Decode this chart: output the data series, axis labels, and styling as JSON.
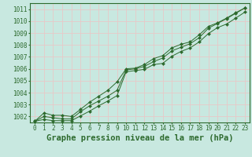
{
  "title": "Graphe pression niveau de la mer (hPa)",
  "x_values": [
    0,
    1,
    2,
    3,
    4,
    5,
    6,
    7,
    8,
    9,
    10,
    11,
    12,
    13,
    14,
    15,
    16,
    17,
    18,
    19,
    20,
    21,
    22,
    23
  ],
  "line1": [
    1001.6,
    1002.0,
    1001.9,
    1001.8,
    1001.8,
    1002.4,
    1002.9,
    1003.3,
    1003.7,
    1004.2,
    1005.9,
    1006.0,
    1006.2,
    1006.6,
    1006.9,
    1007.5,
    1007.8,
    1008.1,
    1008.6,
    1009.4,
    1009.8,
    1010.2,
    1010.65,
    1011.1
  ],
  "line2": [
    1001.6,
    1002.3,
    1002.1,
    1002.1,
    1002.0,
    1002.6,
    1003.2,
    1003.7,
    1004.2,
    1004.9,
    1006.0,
    1006.05,
    1006.35,
    1006.85,
    1007.1,
    1007.75,
    1008.05,
    1008.25,
    1008.85,
    1009.55,
    1009.85,
    1010.25,
    1010.7,
    1011.1
  ],
  "line3": [
    1001.6,
    1001.75,
    1001.65,
    1001.65,
    1001.65,
    1002.05,
    1002.45,
    1002.9,
    1003.3,
    1003.75,
    1005.75,
    1005.85,
    1005.95,
    1006.35,
    1006.45,
    1007.05,
    1007.45,
    1007.75,
    1008.25,
    1008.95,
    1009.45,
    1009.75,
    1010.25,
    1010.75
  ],
  "line_color": "#2d6a2d",
  "bg_color": "#c8e8e0",
  "grid_color": "#e8c8c8",
  "axis_color": "#2d6a2d",
  "text_color": "#2d6a2d",
  "ylim_min": 1001.5,
  "ylim_max": 1011.5,
  "yticks": [
    1002,
    1003,
    1004,
    1005,
    1006,
    1007,
    1008,
    1009,
    1010,
    1011
  ],
  "marker": "D",
  "marker_size": 2.0,
  "title_fontsize": 7.5,
  "tick_fontsize": 5.5
}
